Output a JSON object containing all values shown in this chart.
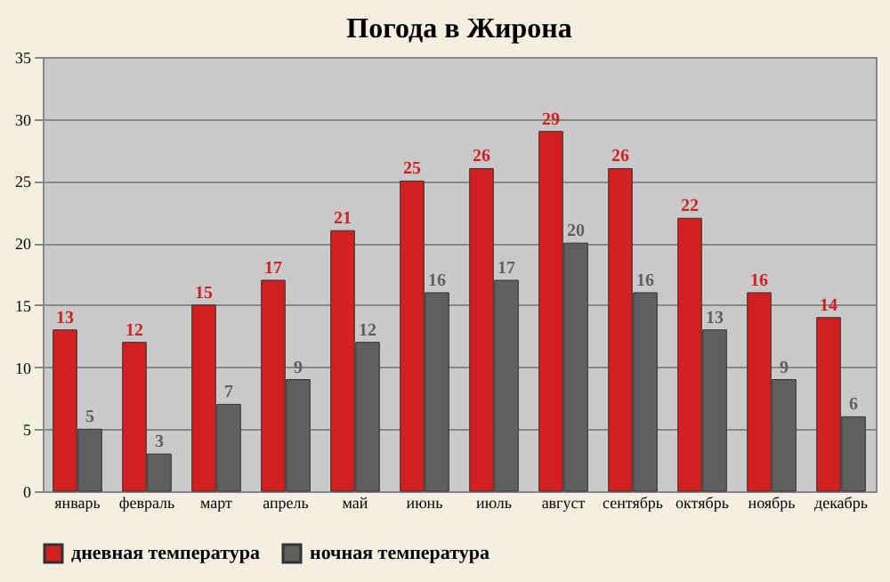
{
  "chart_data": {
    "type": "bar",
    "title": "Погода в Жирона",
    "categories": [
      "январь",
      "февраль",
      "март",
      "апрель",
      "май",
      "июнь",
      "июль",
      "август",
      "сентябрь",
      "октябрь",
      "ноябрь",
      "декабрь"
    ],
    "series": [
      {
        "name": "дневная температура",
        "color": "#d0201f",
        "values": [
          13,
          12,
          15,
          17,
          21,
          25,
          26,
          29,
          26,
          22,
          16,
          14
        ]
      },
      {
        "name": "ночная температура",
        "color": "#5f5f5f",
        "values": [
          5,
          3,
          7,
          9,
          12,
          16,
          17,
          20,
          16,
          13,
          9,
          6
        ]
      }
    ],
    "ylim": [
      0,
      35
    ],
    "yticks": [
      0,
      5,
      10,
      15,
      20,
      25,
      30,
      35
    ],
    "grid": "y",
    "legend": "bottom",
    "data_labels": true
  }
}
